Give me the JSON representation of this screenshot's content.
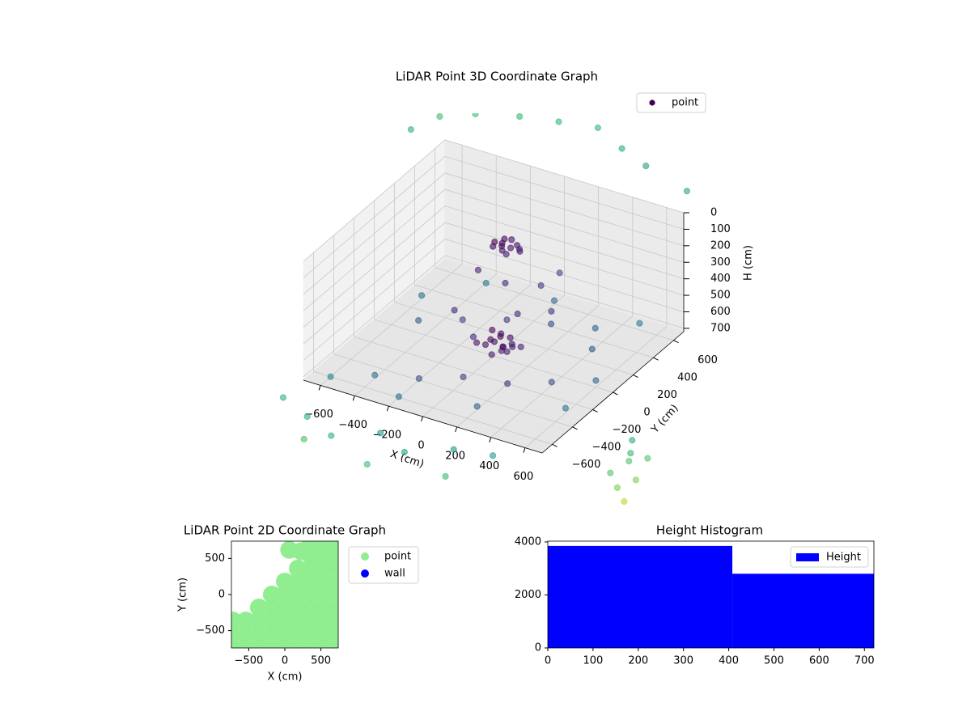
{
  "chart_data": [
    {
      "type": "scatter3d",
      "title": "LiDAR Point 3D Coordinate Graph",
      "xlabel": "X (cm)",
      "ylabel": "Y (cm)",
      "zlabel": "H (cm)",
      "xlim": [
        -700,
        700
      ],
      "ylim": [
        -700,
        700
      ],
      "zlim": [
        720,
        0
      ],
      "xticks": [
        {
          "value": -600,
          "label": "−600"
        },
        {
          "value": -400,
          "label": "−400"
        },
        {
          "value": -200,
          "label": "−200"
        },
        0,
        200,
        400,
        600
      ],
      "yticks": [
        {
          "value": -600,
          "label": "−600"
        },
        {
          "value": -400,
          "label": "−400"
        },
        {
          "value": -200,
          "label": "−200"
        },
        0,
        200,
        400,
        600
      ],
      "zticks": [
        0,
        100,
        200,
        300,
        400,
        500,
        600,
        700
      ],
      "grid": true,
      "legend": "upper right",
      "series": [
        {
          "name": "point",
          "cmap": "viridis",
          "x": [
            20,
            60,
            100,
            140,
            40,
            80,
            120,
            0,
            160,
            70,
            110,
            50,
            -40,
            0,
            40,
            80,
            120,
            160,
            -20,
            20,
            60,
            100,
            140,
            0,
            40,
            80,
            120,
            60,
            -150,
            200,
            -50,
            100,
            250,
            -200,
            150,
            0,
            -600,
            -400,
            -200,
            0,
            200,
            400,
            600,
            -500,
            -300,
            -100,
            100,
            300,
            500,
            -600,
            -200,
            200,
            600,
            -400,
            400,
            0,
            -700,
            -500,
            -300,
            -100,
            100,
            300,
            500,
            -400,
            0,
            400,
            -900,
            -850,
            -700,
            -500,
            -300,
            -100,
            100,
            300,
            600,
            900,
            1100,
            1200,
            1150,
            1250,
            1050,
            1300,
            1200,
            1100
          ],
          "y": [
            -40,
            -20,
            0,
            20,
            40,
            -50,
            30,
            10,
            -10,
            60,
            -60,
            0,
            -100,
            -80,
            -60,
            -40,
            -20,
            0,
            20,
            40,
            -120,
            -90,
            -50,
            -30,
            0,
            30,
            -70,
            -10,
            100,
            -100,
            200,
            300,
            150,
            -50,
            400,
            -200,
            -600,
            -500,
            -400,
            -300,
            -200,
            -100,
            0,
            100,
            200,
            300,
            400,
            500,
            600,
            300,
            -600,
            -500,
            -300,
            600,
            300,
            600,
            -900,
            -1000,
            -1100,
            -950,
            -1050,
            -900,
            -850,
            -1200,
            -1250,
            -1150,
            700,
            900,
            1000,
            1100,
            1150,
            1200,
            1100,
            1000,
            900,
            800,
            -500,
            -800,
            -600,
            -700,
            -400,
            -900,
            -500,
            -700
          ],
          "z": [
            30,
            25,
            35,
            40,
            20,
            30,
            28,
            35,
            32,
            25,
            38,
            22,
            600,
            610,
            590,
            620,
            600,
            615,
            580,
            600,
            630,
            610,
            595,
            605,
            590,
            600,
            620,
            640,
            300,
            350,
            400,
            420,
            450,
            480,
            380,
            500,
            720,
            700,
            710,
            690,
            720,
            700,
            680,
            715,
            700,
            690,
            705,
            720,
            680,
            700,
            715,
            700,
            690,
            720,
            710,
            700,
            720,
            720,
            720,
            720,
            720,
            720,
            720,
            720,
            720,
            720,
            0,
            10,
            0,
            5,
            0,
            0,
            10,
            0,
            5,
            0,
            700,
            720,
            680,
            710,
            690,
            720,
            700,
            715
          ]
        }
      ]
    },
    {
      "type": "scatter",
      "title": "LiDAR Point 2D Coordinate Graph",
      "xlabel": "X (cm)",
      "ylabel": "Y (cm)",
      "xlim": [
        -740,
        740
      ],
      "ylim": [
        -740,
        740
      ],
      "xticks": [
        {
          "value": -500,
          "label": "−500"
        },
        0,
        500
      ],
      "yticks": [
        {
          "value": -500,
          "label": "−500"
        },
        0,
        500
      ],
      "legend": "outside upper right",
      "series": [
        {
          "name": "point",
          "color": "#90ee90",
          "x": [
            -720,
            -720,
            -720,
            -540,
            -540,
            -540,
            -360,
            -360,
            -360,
            -360,
            -180,
            -180,
            -180,
            -180,
            -180,
            0,
            0,
            0,
            0,
            0,
            0,
            180,
            180,
            180,
            180,
            180,
            180,
            180,
            360,
            360,
            360,
            360,
            360,
            360,
            360,
            360,
            360,
            540,
            540,
            540,
            540,
            540,
            540,
            540,
            540,
            540,
            720,
            720,
            720,
            720,
            720,
            720,
            720,
            720,
            720,
            60,
            220
          ],
          "y": [
            -720,
            -540,
            -360,
            -720,
            -540,
            -360,
            -720,
            -540,
            -360,
            -180,
            -720,
            -540,
            -360,
            -180,
            0,
            -720,
            -540,
            -360,
            -180,
            0,
            180,
            -720,
            -540,
            -360,
            -180,
            0,
            180,
            360,
            -720,
            -540,
            -360,
            -180,
            0,
            180,
            360,
            540,
            720,
            -720,
            -540,
            -360,
            -180,
            0,
            180,
            360,
            540,
            720,
            -720,
            -540,
            -360,
            -180,
            0,
            180,
            360,
            540,
            720,
            620,
            600
          ]
        },
        {
          "name": "wall",
          "color": "#0000ff",
          "x": [],
          "y": []
        }
      ]
    },
    {
      "type": "histogram",
      "title": "Height Histogram",
      "xlim": [
        0,
        721
      ],
      "ylim": [
        0,
        4030
      ],
      "xticks": [
        0,
        100,
        200,
        300,
        400,
        500,
        600,
        700
      ],
      "yticks": [
        0,
        2000,
        4000
      ],
      "legend": "upper right",
      "bins": [
        0,
        408,
        721
      ],
      "series": [
        {
          "name": "Height",
          "color": "#0000ff",
          "values": [
            3850,
            2800
          ]
        }
      ]
    }
  ]
}
